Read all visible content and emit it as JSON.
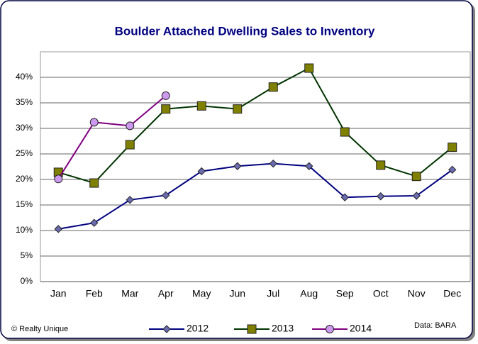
{
  "chart_data": {
    "type": "line",
    "title": "Boulder Attached Dwelling Sales to Inventory",
    "categories": [
      "Jan",
      "Feb",
      "Mar",
      "Apr",
      "May",
      "Jun",
      "Jul",
      "Aug",
      "Sep",
      "Oct",
      "Nov",
      "Dec"
    ],
    "series": [
      {
        "name": "2012",
        "color": "#000080",
        "marker": "diamond",
        "marker_color": "#6b6bb0",
        "values": [
          10.3,
          11.5,
          16.0,
          16.9,
          21.6,
          22.6,
          23.1,
          22.6,
          16.5,
          16.7,
          16.8,
          21.9
        ]
      },
      {
        "name": "2013",
        "color": "#003300",
        "marker": "square",
        "marker_color": "#808000",
        "values": [
          21.4,
          19.3,
          26.8,
          33.8,
          34.4,
          33.8,
          38.1,
          41.8,
          29.3,
          22.8,
          20.6,
          26.3
        ]
      },
      {
        "name": "2014",
        "color": "#800080",
        "marker": "circle",
        "marker_color": "#cc99ee",
        "values": [
          20.1,
          31.2,
          30.5,
          36.4,
          null,
          null,
          null,
          null,
          null,
          null,
          null,
          null
        ]
      }
    ],
    "ylim": [
      0,
      45
    ],
    "yticks": [
      {
        "value": 0,
        "label": "0%"
      },
      {
        "value": 5,
        "label": "5%"
      },
      {
        "value": 10,
        "label": "10%"
      },
      {
        "value": 15,
        "label": "15%"
      },
      {
        "value": 20,
        "label": "20%"
      },
      {
        "value": 25,
        "label": "25%"
      },
      {
        "value": 30,
        "label": "30%"
      },
      {
        "value": 35,
        "label": "35%"
      },
      {
        "value": 40,
        "label": "40%"
      }
    ],
    "grid": true,
    "legend": "bottom",
    "annotations": [
      "© Realty Unique",
      "Data: BARA"
    ]
  }
}
